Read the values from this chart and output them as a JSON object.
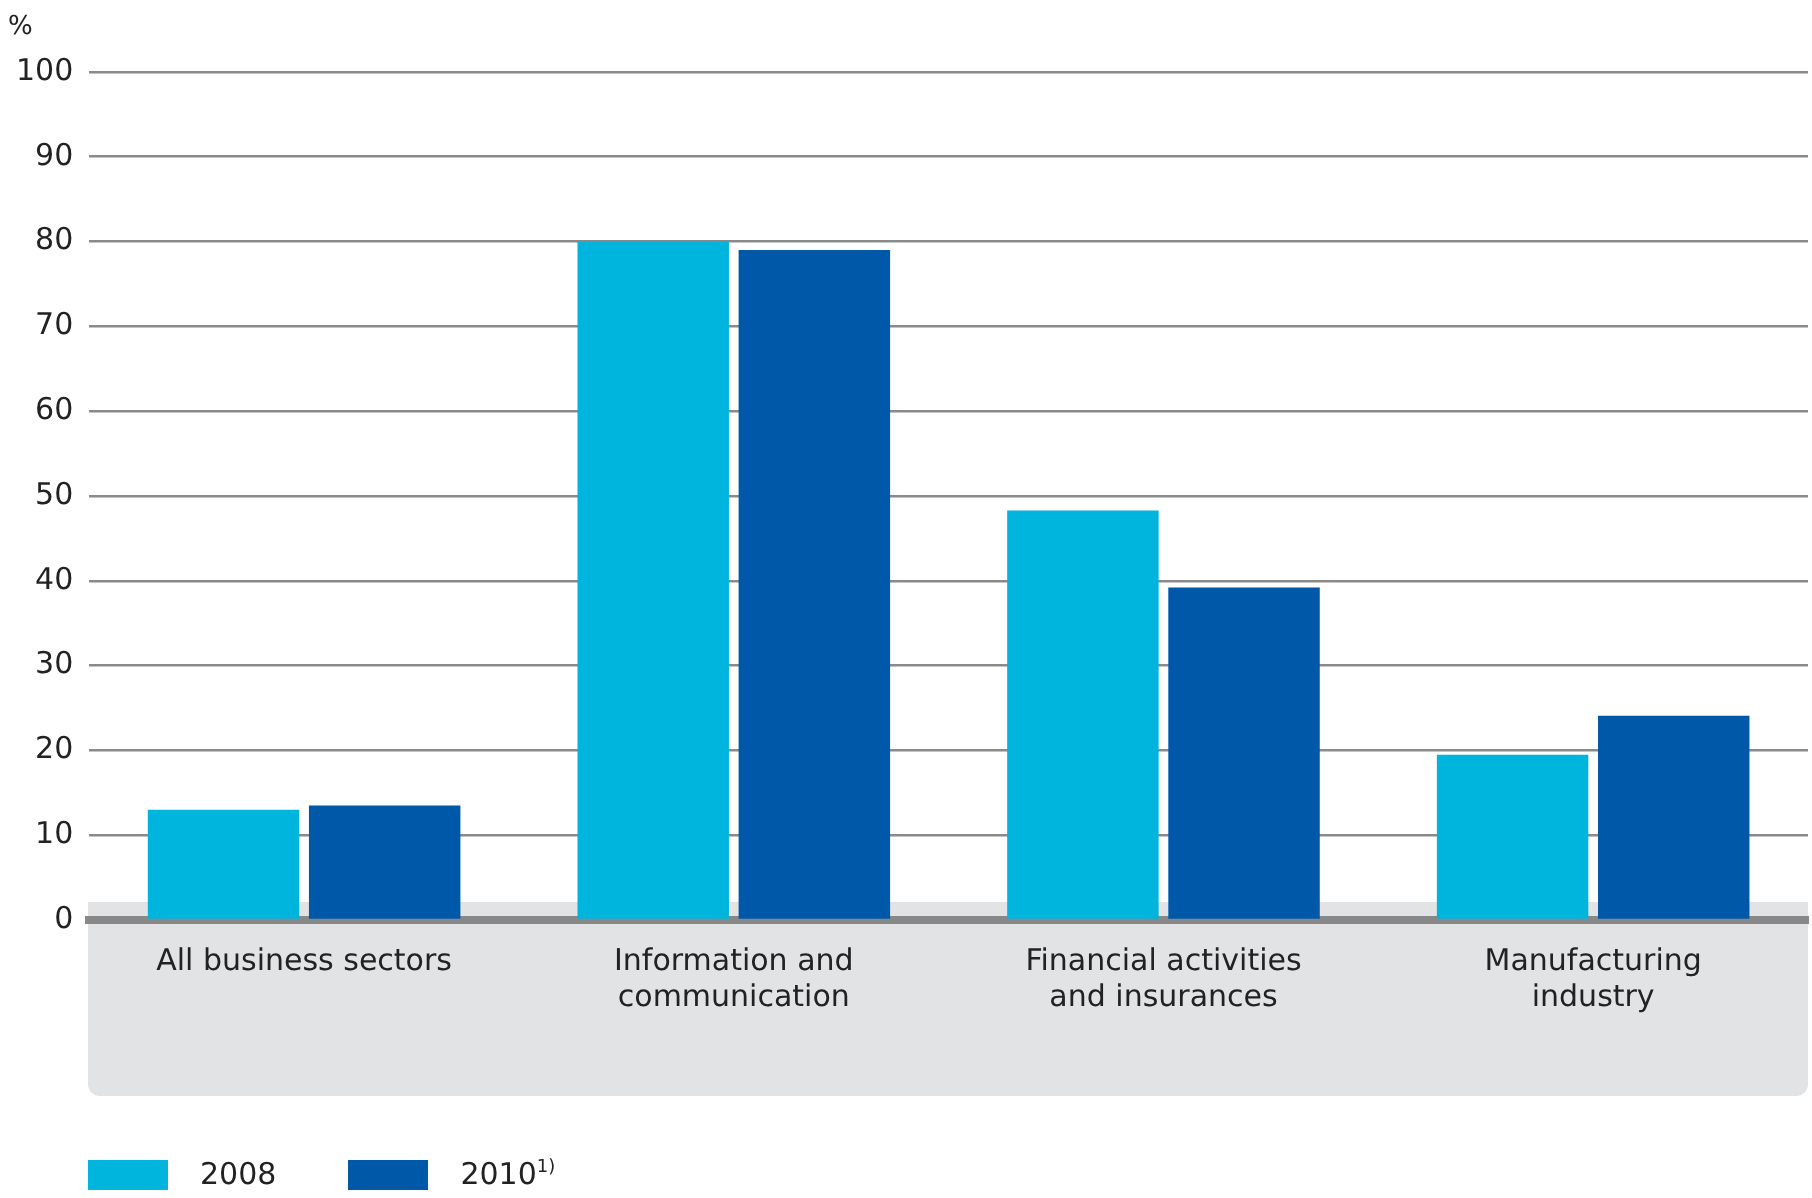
{
  "chart_data": {
    "type": "bar",
    "ylabel": "%",
    "categories": [
      "All business sectors",
      "Information and communication",
      "Financial activities and insurances",
      "Manufacturing industry"
    ],
    "series": [
      {
        "name": "2008",
        "color": "#00b5dd",
        "values": [
          13,
          80,
          48.3,
          19.5
        ]
      },
      {
        "name": "2010$^{1)}$",
        "color": "#0058a8",
        "values": [
          13.5,
          79,
          39.2,
          24.1
        ]
      }
    ],
    "ylim": [
      0,
      100
    ],
    "yticks": [
      0,
      10,
      20,
      30,
      40,
      50,
      60,
      70,
      80,
      90,
      100
    ],
    "grid": "y",
    "legend": "bottom left"
  }
}
